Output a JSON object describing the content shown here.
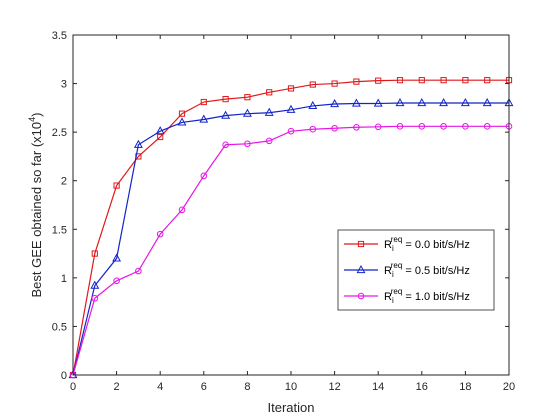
{
  "chart_data": {
    "type": "line",
    "xlabel": "Iteration",
    "ylabel_main": "Best GEE obtained so far (x10",
    "ylabel_exp": "4",
    "ylabel_close": ")",
    "xlim": [
      0,
      20
    ],
    "ylim": [
      0,
      3.5
    ],
    "xticks": [
      0,
      2,
      4,
      6,
      8,
      10,
      12,
      14,
      16,
      18,
      20
    ],
    "yticks": [
      0,
      0.5,
      1,
      1.5,
      2,
      2.5,
      3,
      3.5
    ],
    "grid": false,
    "legend_position": "lower-right",
    "x": [
      0,
      1,
      2,
      3,
      4,
      5,
      6,
      7,
      8,
      9,
      10,
      11,
      12,
      13,
      14,
      15,
      16,
      17,
      18,
      19,
      20
    ],
    "series": [
      {
        "legend_base": "R",
        "legend_sub": "i",
        "legend_sup": "req",
        "legend_rest": " = 0.0 bit/s/Hz",
        "color": "#e0191b",
        "marker": "square",
        "values": [
          0,
          1.25,
          1.95,
          2.25,
          2.45,
          2.69,
          2.81,
          2.84,
          2.86,
          2.91,
          2.95,
          2.99,
          3.0,
          3.02,
          3.03,
          3.035,
          3.035,
          3.035,
          3.035,
          3.035,
          3.035
        ]
      },
      {
        "legend_base": "R",
        "legend_sub": "i",
        "legend_sup": "req",
        "legend_rest": " = 0.5 bit/s/Hz",
        "color": "#1324c8",
        "marker": "triangle",
        "values": [
          0,
          0.92,
          1.2,
          2.37,
          2.51,
          2.6,
          2.63,
          2.67,
          2.69,
          2.7,
          2.73,
          2.77,
          2.79,
          2.795,
          2.795,
          2.8,
          2.8,
          2.8,
          2.8,
          2.8,
          2.8
        ]
      },
      {
        "legend_base": "R",
        "legend_sub": "i",
        "legend_sup": "req",
        "legend_rest": " = 1.0 bit/s/Hz",
        "color": "#e617e6",
        "marker": "circle",
        "values": [
          0,
          0.79,
          0.97,
          1.07,
          1.45,
          1.7,
          2.05,
          2.37,
          2.38,
          2.41,
          2.51,
          2.53,
          2.54,
          2.55,
          2.555,
          2.56,
          2.56,
          2.56,
          2.56,
          2.56,
          2.56
        ]
      }
    ]
  }
}
